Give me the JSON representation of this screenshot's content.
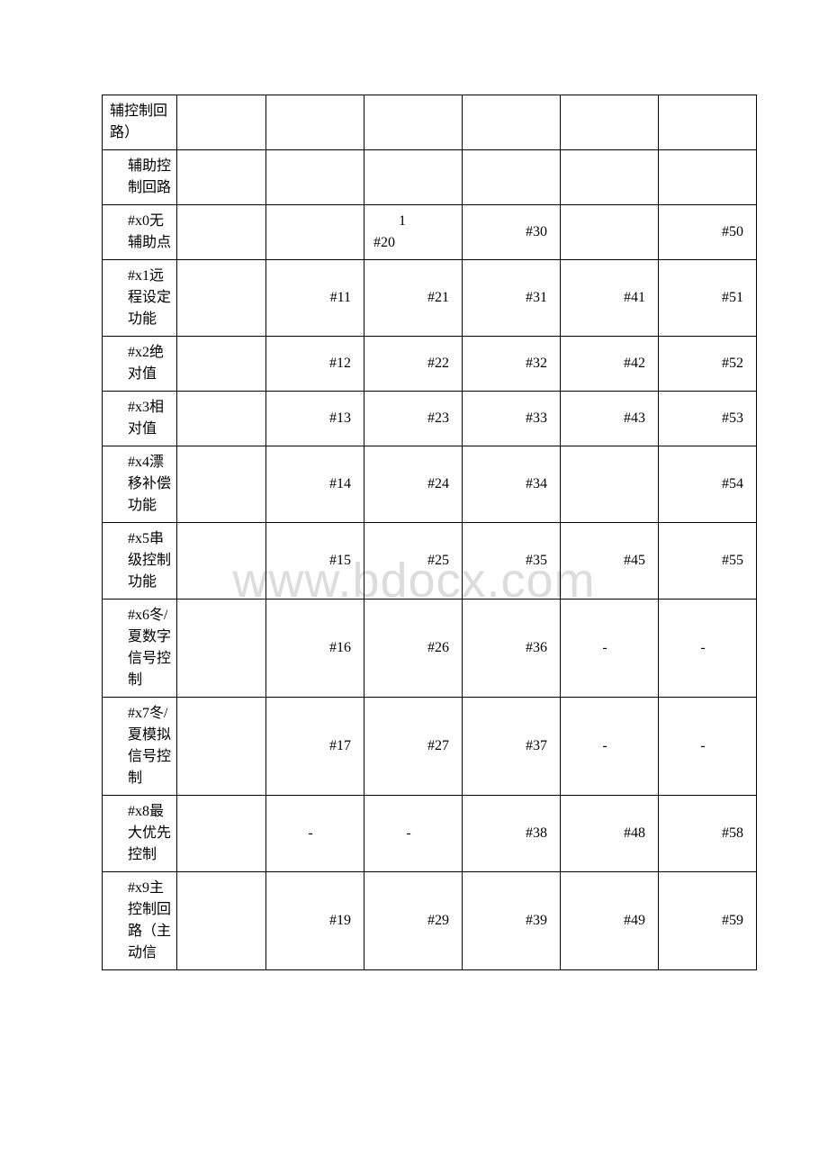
{
  "watermark": "www.bdocx.com",
  "table": {
    "rows": [
      {
        "c1": "辅控制回路）",
        "c1_style": "",
        "c2": "",
        "c3": "",
        "c4": "",
        "c5": "",
        "c6": "",
        "c7": ""
      },
      {
        "c1": "辅助控制回路",
        "c1_style": "indent",
        "c2": "",
        "c3": "",
        "c4": "",
        "c5": "",
        "c6": "",
        "c7": ""
      },
      {
        "c1": "#x0无辅助点",
        "c1_style": "indent",
        "c2": "",
        "c3": "",
        "c4_sp": "1 #20",
        "c5": "#30",
        "c6": "",
        "c7": "#50"
      },
      {
        "c1": "#x1远程设定功能",
        "c1_style": "indent",
        "c2": "",
        "c3": "#11",
        "c4": "#21",
        "c5": "#31",
        "c6": "#41",
        "c7": "#51"
      },
      {
        "c1": "#x2绝对值",
        "c1_style": "indent",
        "c2": "",
        "c3": "#12",
        "c4": "#22",
        "c5": "#32",
        "c6": "#42",
        "c7": "#52"
      },
      {
        "c1": "#x3相对值",
        "c1_style": "indent",
        "c2": "",
        "c3": "#13",
        "c4": "#23",
        "c5": "#33",
        "c6": "#43",
        "c7": "#53"
      },
      {
        "c1": "#x4漂移补偿功能",
        "c1_style": "indent",
        "c2": "",
        "c3": "#14",
        "c4": "#24",
        "c5": "#34",
        "c6": "",
        "c7": "#54"
      },
      {
        "c1": "#x5串级控制功能",
        "c1_style": "indent",
        "c2": "",
        "c3": "#15",
        "c4": "#25",
        "c5": "#35",
        "c6": "#45",
        "c7": "#55"
      },
      {
        "c1": "#x6冬/夏数字信号控制",
        "c1_style": "indent",
        "c2": "",
        "c3": "#16",
        "c4": "#26",
        "c5": "#36",
        "c6": "-",
        "c7": "-"
      },
      {
        "c1": "#x7冬/夏模拟信号控制",
        "c1_style": "indent",
        "c2": "",
        "c3": "#17",
        "c4": "#27",
        "c5": "#37",
        "c6": "-",
        "c7": "-"
      },
      {
        "c1": "#x8最大优先控制",
        "c1_style": "indent",
        "c2": "",
        "c3": "-",
        "c4": "-",
        "c5": "#38",
        "c6": "#48",
        "c7": "#58"
      },
      {
        "c1": "#x9主控制回路（主动信",
        "c1_style": "indent",
        "c2": "",
        "c3": "#19",
        "c4": "#29",
        "c5": "#39",
        "c6": "#49",
        "c7": "#59"
      }
    ],
    "col6_center_rows": [
      8,
      9
    ],
    "col7_center_rows": [
      8,
      9
    ],
    "col3_center_rows": [
      10
    ],
    "col4_center_rows": [
      10
    ]
  }
}
